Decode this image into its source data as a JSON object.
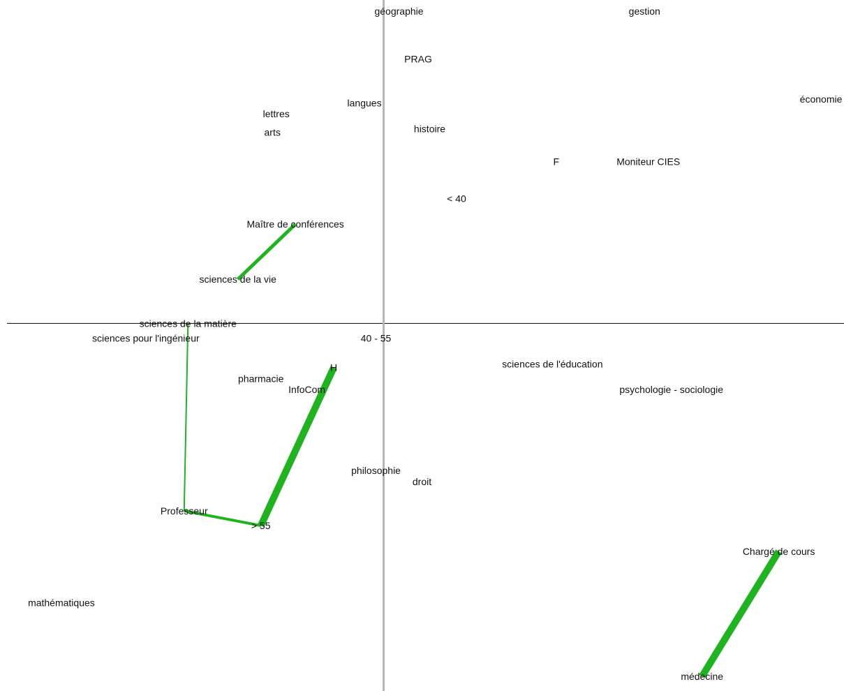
{
  "chart_data": {
    "type": "scatter",
    "title": "",
    "xlabel": "",
    "ylabel": "",
    "grid": false,
    "xlim": [
      -1.0,
      1.2
    ],
    "ylim": [
      -1.0,
      0.88
    ],
    "points": [
      {
        "label": "géographie",
        "x": 0.04,
        "y": 0.85
      },
      {
        "label": "gestion",
        "x": 0.68,
        "y": 0.85
      },
      {
        "label": "PRAG",
        "x": 0.09,
        "y": 0.72
      },
      {
        "label": "économie",
        "x": 1.14,
        "y": 0.61
      },
      {
        "label": "langues",
        "x": -0.05,
        "y": 0.6
      },
      {
        "label": "lettres",
        "x": -0.28,
        "y": 0.57
      },
      {
        "label": "arts",
        "x": -0.29,
        "y": 0.52
      },
      {
        "label": "histoire",
        "x": 0.12,
        "y": 0.53
      },
      {
        "label": "F",
        "x": 0.45,
        "y": 0.44
      },
      {
        "label": "Moniteur CIES",
        "x": 0.69,
        "y": 0.44
      },
      {
        "label": "< 40",
        "x": 0.19,
        "y": 0.34
      },
      {
        "label": "Maître de conférences",
        "x": -0.23,
        "y": 0.27
      },
      {
        "label": "sciences de la vie",
        "x": -0.38,
        "y": 0.12
      },
      {
        "label": "sciences de la matière",
        "x": -0.51,
        "y": 0.0
      },
      {
        "label": "sciences pour l'ingénieur",
        "x": -0.62,
        "y": -0.04
      },
      {
        "label": "40 - 55",
        "x": -0.02,
        "y": -0.04
      },
      {
        "label": "sciences de l'éducation",
        "x": 0.44,
        "y": -0.11
      },
      {
        "label": "H",
        "x": -0.13,
        "y": -0.12
      },
      {
        "label": "pharmacie",
        "x": -0.32,
        "y": -0.15
      },
      {
        "label": "InfoCom",
        "x": -0.2,
        "y": -0.18
      },
      {
        "label": "psychologie - sociologie",
        "x": 0.75,
        "y": -0.18
      },
      {
        "label": "philosophie",
        "x": -0.02,
        "y": -0.4
      },
      {
        "label": "droit",
        "x": 0.1,
        "y": -0.43
      },
      {
        "label": "Professeur",
        "x": -0.52,
        "y": -0.51
      },
      {
        "label": "> 55",
        "x": -0.32,
        "y": -0.55
      },
      {
        "label": "Chargé de cours",
        "x": 1.03,
        "y": -0.62
      },
      {
        "label": "mathématiques",
        "x": -0.84,
        "y": -0.76
      },
      {
        "label": "médecine",
        "x": 0.83,
        "y": -0.96
      }
    ],
    "links": [
      {
        "from": "Maître de conférences",
        "to": "sciences de la vie",
        "weight": 5
      },
      {
        "from": "sciences de la matière",
        "to": "Professeur",
        "weight": 2
      },
      {
        "from": "Professeur",
        "to": "> 55",
        "weight": 4
      },
      {
        "from": "> 55",
        "to": "H",
        "weight": 10
      },
      {
        "from": "Chargé de cours",
        "to": "médecine",
        "weight": 10
      }
    ],
    "link_color": "#1fb31f",
    "axis_color_x": "#000000",
    "axis_color_y": "#b5b5b5",
    "label_color": "#111111"
  }
}
